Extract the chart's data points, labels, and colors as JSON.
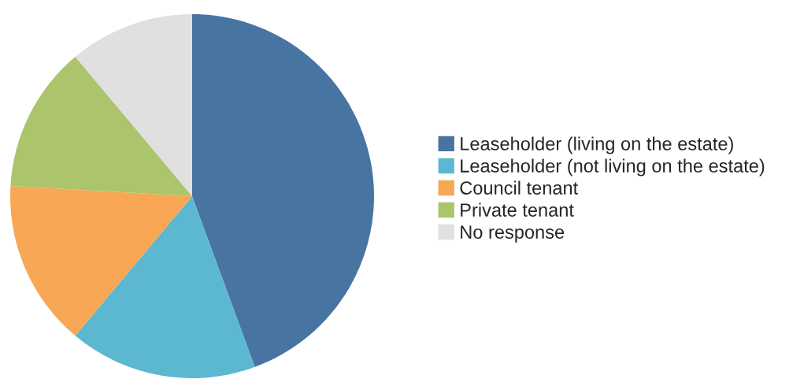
{
  "chart_data": {
    "type": "pie",
    "categories": [
      "Leaseholder (living on the estate)",
      "Leaseholder (not living on the estate)",
      "Council tenant",
      "Private tenant",
      "No response"
    ],
    "values": [
      44.4,
      16.7,
      14.8,
      13.0,
      11.1
    ],
    "colors": [
      "#4874a1",
      "#5bb8d0",
      "#f8a755",
      "#acc46b",
      "#e0e0e0"
    ],
    "legend": "right"
  }
}
